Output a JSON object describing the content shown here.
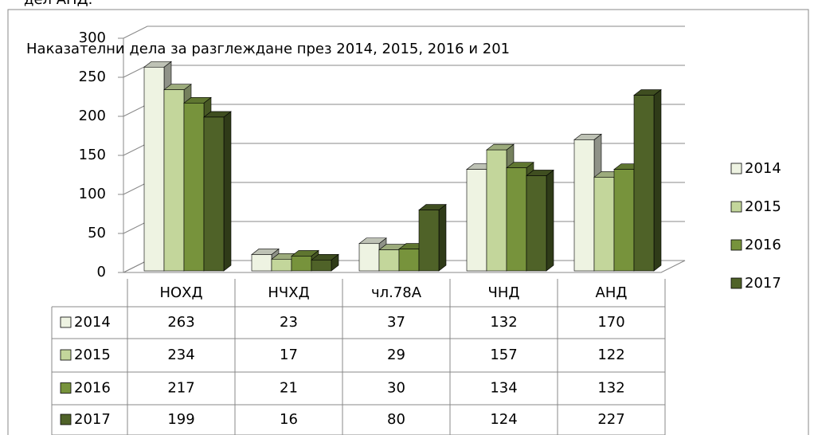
{
  "annotations": [
    "дел АНД."
  ],
  "chart_data": {
    "type": "bar3d",
    "title": "Наказателни дела за разглеждане през 2014, 2015, 2016 и 201",
    "categories": [
      "НОХД",
      "НЧХД",
      "чл.78А",
      "ЧНД",
      "АНД"
    ],
    "series": [
      {
        "name": "2014",
        "color": "#eef3e2",
        "values": [
          263,
          23,
          37,
          132,
          170
        ]
      },
      {
        "name": "2015",
        "color": "#c3d69b",
        "values": [
          234,
          17,
          29,
          157,
          122
        ]
      },
      {
        "name": "2016",
        "color": "#77933c",
        "values": [
          217,
          21,
          30,
          134,
          132
        ]
      },
      {
        "name": "2017",
        "color": "#4f6228",
        "values": [
          199,
          16,
          80,
          124,
          227
        ]
      }
    ],
    "ylim": [
      0,
      300
    ],
    "yticks": [
      0,
      50,
      100,
      150,
      200,
      250,
      300
    ],
    "grid": true,
    "legend": "right",
    "data_table": true
  }
}
